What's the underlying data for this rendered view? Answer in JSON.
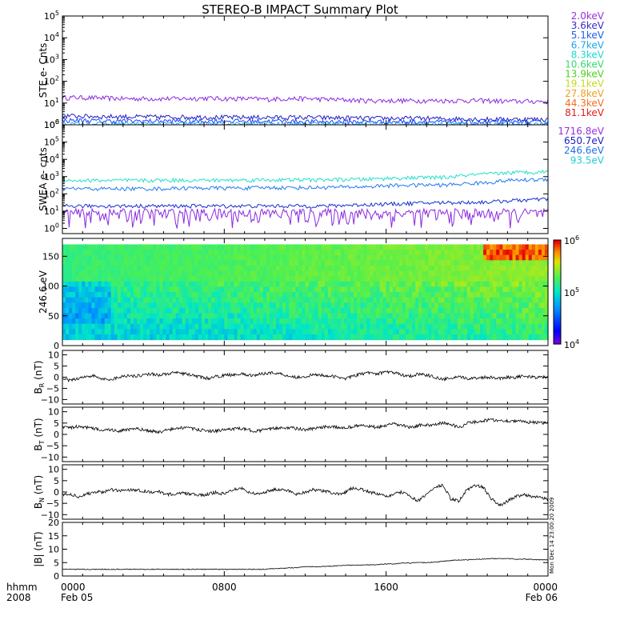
{
  "chart_data": {
    "type": "line",
    "title": "STEREO-B IMPACT Summary Plot",
    "x_axis": {
      "corner_label": "hhmm",
      "corner_year": "2008",
      "ticks": [
        {
          "hour": 0,
          "time": "0000",
          "date": "Feb 05"
        },
        {
          "hour": 8,
          "time": "0800",
          "date": ""
        },
        {
          "hour": 16,
          "time": "1600",
          "date": ""
        },
        {
          "hour": 24,
          "time": "0000",
          "date": "Feb 06"
        }
      ],
      "range_hours": [
        0,
        24
      ]
    },
    "side_stamp": "Mon Dec 14 23:00:20 2009",
    "panels": [
      {
        "id": "ste",
        "type": "line",
        "ylabel": "STE e- Cnts",
        "yscale": "log",
        "ylim": [
          1,
          100000
        ],
        "ytick_exponents": [
          0,
          1,
          2,
          3,
          4,
          5
        ],
        "legend": [
          {
            "label": "2.0keV",
            "color": "#9a30d8"
          },
          {
            "label": "3.6keV",
            "color": "#3c2cc8"
          },
          {
            "label": "5.1keV",
            "color": "#1f5cf0"
          },
          {
            "label": "6.7keV",
            "color": "#20a8e8"
          },
          {
            "label": "8.3keV",
            "color": "#20d8d0"
          },
          {
            "label": "10.6keV",
            "color": "#38d870"
          },
          {
            "label": "13.9keV",
            "color": "#50d020"
          },
          {
            "label": "19.1keV",
            "color": "#c8d820"
          },
          {
            "label": "27.8keV",
            "color": "#f0a020"
          },
          {
            "label": "44.3keV",
            "color": "#f07020"
          },
          {
            "label": "81.1keV",
            "color": "#e02020"
          }
        ],
        "series": [
          {
            "name": "2.0keV",
            "color": "#8a2ae0",
            "level": [
              18,
              18,
              17,
              16,
              16,
              16,
              16,
              17,
              16,
              16,
              15,
              16,
              16,
              15,
              14,
              13,
              13,
              13,
              13,
              13,
              13,
              13,
              12,
              12,
              12
            ]
          },
          {
            "name": "3.6keV",
            "color": "#2020c0",
            "level": [
              2.6,
              2.5,
              2.4,
              2.4,
              2.3,
              2.3,
              2.3,
              2.3,
              2.2,
              2.2,
              2.2,
              2.2,
              2.2,
              2.1,
              2.1,
              2.0,
              2.0,
              2.0,
              2.0,
              1.9,
              1.9,
              1.8,
              1.8,
              1.8,
              1.8
            ]
          },
          {
            "name": "5.1keV",
            "color": "#2040ff",
            "level": [
              1.6,
              1.6,
              1.5,
              1.5,
              1.5,
              1.5,
              1.5,
              1.5,
              1.5,
              1.5,
              1.5,
              1.5,
              1.4,
              1.4,
              1.4,
              1.4,
              1.4,
              1.4,
              1.4,
              1.3,
              1.3,
              1.3,
              1.3,
              1.3,
              1.3
            ]
          },
          {
            "name": "6.7keV",
            "color": "#20b0f0",
            "level": [
              1.1,
              1.1,
              1.1,
              1.1,
              1.1,
              1.1,
              1.1,
              1.1,
              1.1,
              1.1,
              1.1,
              1.1,
              1.1,
              1.1,
              1.1,
              1.1,
              1.1,
              1.1,
              1.1,
              1.1,
              1.1,
              1.1,
              1.1,
              1.1,
              1.1
            ]
          }
        ]
      },
      {
        "id": "swea",
        "type": "line",
        "ylabel": "SWEA e- cnts",
        "yscale": "log",
        "ylim": [
          0.5,
          1000000
        ],
        "ytick_exponents": [
          0,
          1,
          2,
          3,
          4,
          5,
          6
        ],
        "legend": [
          {
            "label": "1716.8eV",
            "color": "#9a30d8"
          },
          {
            "label": "650.7eV",
            "color": "#2020c0"
          },
          {
            "label": "246.6eV",
            "color": "#1f6ff0"
          },
          {
            "label": "93.5eV",
            "color": "#20d0d0"
          }
        ],
        "series": [
          {
            "name": "1716.8eV",
            "color": "#8a2ae0",
            "level": [
              4,
              4,
              4,
              4,
              4,
              4,
              4,
              4,
              4,
              4,
              4,
              4,
              4,
              4,
              4,
              4,
              4,
              4,
              4,
              4,
              4,
              4,
              4,
              4,
              4
            ]
          },
          {
            "name": "650.7eV",
            "color": "#1530d0",
            "level": [
              20,
              20,
              20,
              20,
              20,
              20,
              20,
              20,
              20,
              20,
              20,
              20,
              20,
              20,
              22,
              24,
              26,
              28,
              30,
              32,
              32,
              34,
              40,
              45,
              50
            ]
          },
          {
            "name": "246.6eV",
            "color": "#1f78f0",
            "level": [
              200,
              200,
              200,
              200,
              200,
              200,
              220,
              220,
              220,
              220,
              230,
              230,
              230,
              240,
              250,
              260,
              300,
              320,
              330,
              330,
              400,
              450,
              600,
              650,
              700
            ]
          },
          {
            "name": "93.5eV",
            "color": "#20e0c8",
            "level": [
              600,
              600,
              600,
              600,
              600,
              620,
              620,
              620,
              620,
              640,
              650,
              650,
              650,
              660,
              680,
              700,
              800,
              850,
              900,
              900,
              1200,
              1400,
              1700,
              1800,
              2000
            ]
          }
        ]
      },
      {
        "id": "pad",
        "type": "heatmap",
        "ylabel": "246.6 eV",
        "ylim": [
          0,
          180
        ],
        "yticks": [
          0,
          50,
          100,
          150
        ],
        "colorbar": {
          "scale": "log",
          "range": [
            10000,
            1000000
          ],
          "tick_exponents": [
            4,
            5,
            6
          ]
        }
      },
      {
        "id": "br",
        "type": "line",
        "ylabel": "B",
        "ylabel_sub": "R",
        "ylabel_unit": "(nT)",
        "ylim": [
          -12,
          12
        ],
        "yticks": [
          -10,
          -5,
          0,
          5,
          10
        ],
        "series": [
          {
            "name": "BR",
            "color": "#000000",
            "values": [
              -1,
              -1.5,
              -0.5,
              0.5,
              0.5,
              -1,
              -1,
              0,
              0.8,
              0.5,
              1,
              1.5,
              1,
              1.5,
              2,
              1.5,
              1,
              0,
              -0.5,
              0.2,
              0.8,
              1.2,
              1.5,
              0.8,
              1,
              1.8,
              2,
              1.5,
              0.5,
              0,
              0.3,
              1,
              1,
              0.5,
              0,
              -0.5,
              0.5,
              1.5,
              2,
              1.5,
              2.5,
              2,
              1,
              0.5,
              1.5,
              1,
              0,
              -1,
              -0.5,
              0,
              -0.5,
              -0.5,
              0,
              0,
              -0.5,
              0,
              0,
              0.5,
              0,
              0,
              0
            ]
          }
        ]
      },
      {
        "id": "bt",
        "type": "line",
        "ylabel": "B",
        "ylabel_sub": "T",
        "ylabel_unit": "(nT)",
        "ylim": [
          -12,
          12
        ],
        "yticks": [
          -10,
          -5,
          0,
          5,
          10
        ],
        "series": [
          {
            "name": "BT",
            "color": "#000000",
            "values": [
              3,
              3,
              3.5,
              3,
              2.5,
              2,
              2,
              1.5,
              2,
              2.5,
              2,
              1.5,
              1,
              2,
              2.5,
              3,
              2.5,
              2,
              1.5,
              1.5,
              2,
              2.5,
              2.5,
              2,
              1.5,
              2,
              2.5,
              3,
              3,
              2.5,
              2,
              2.5,
              3,
              3.5,
              3,
              3,
              3.5,
              4,
              3.5,
              3,
              4,
              4.5,
              4,
              3,
              4,
              4,
              4.5,
              5,
              4.5,
              3,
              5,
              5.5,
              6,
              6.5,
              6,
              6,
              6,
              5.5,
              5.5,
              5,
              5
            ]
          }
        ]
      },
      {
        "id": "bn",
        "type": "line",
        "ylabel": "B",
        "ylabel_sub": "N",
        "ylabel_unit": "(nT)",
        "ylim": [
          -12,
          12
        ],
        "yticks": [
          -10,
          -5,
          0,
          5,
          10
        ],
        "series": [
          {
            "name": "BN",
            "color": "#000000",
            "values": [
              -1,
              -1,
              -2,
              -1,
              0,
              0,
              1,
              0.5,
              1,
              1,
              0.5,
              0,
              0,
              -1,
              -1,
              -0.5,
              -1,
              -1.5,
              -1,
              0,
              -1,
              1,
              2,
              0,
              -1,
              0,
              1,
              1,
              0.5,
              -1,
              0,
              1,
              0.5,
              0,
              -1,
              0,
              2,
              1,
              0,
              -1,
              -2,
              -1,
              0,
              -2,
              -4,
              -1,
              2,
              3,
              -3,
              -4,
              1,
              3,
              2,
              -3,
              -6,
              -4,
              -2,
              -1,
              -2,
              -2.5,
              -3
            ]
          }
        ]
      },
      {
        "id": "bmag",
        "type": "line",
        "ylabel": "|B| (nT)",
        "ylim": [
          0,
          20
        ],
        "yticks": [
          0,
          5,
          10,
          15,
          20
        ],
        "series": [
          {
            "name": "|B|",
            "color": "#000000",
            "values": [
              2.5,
              2.5,
              2.5,
              2.5,
              2.5,
              2.5,
              2.5,
              2.5,
              2.5,
              2.5,
              2.5,
              2.5,
              2.5,
              2.5,
              2.5,
              2.5,
              2.5,
              2.5,
              2.5,
              2.5,
              2.5,
              2.5,
              2.5,
              2.5,
              2.5,
              2.5,
              2.7,
              2.8,
              3,
              3.2,
              3.5,
              3.5,
              3.5,
              3.6,
              3.8,
              4,
              4,
              4,
              4.2,
              4.3,
              4.5,
              4.5,
              4.8,
              4.8,
              5,
              5,
              5.2,
              5.5,
              5.8,
              6,
              6,
              6.2,
              6.3,
              6.5,
              6.5,
              6.5,
              6.3,
              6.3,
              6.2,
              6,
              6
            ]
          }
        ]
      }
    ]
  }
}
